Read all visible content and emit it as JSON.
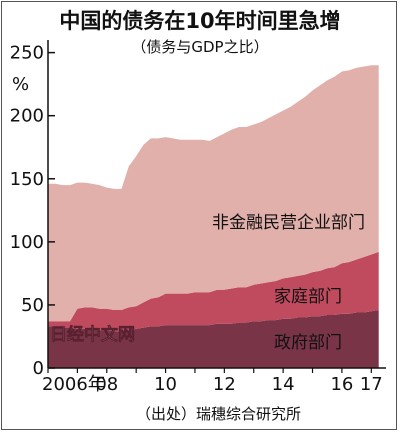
{
  "chart_data": {
    "type": "area",
    "stacked": true,
    "title": "中国的债务在10年时间里急增",
    "subtitle": "（债务与GDP之比）",
    "ylabel": "%",
    "ylim": [
      0,
      260
    ],
    "yticks": [
      0,
      50,
      100,
      150,
      200,
      250
    ],
    "xlim": [
      2006,
      2017.5
    ],
    "xticks": [
      {
        "value": 2006,
        "label": "2006年"
      },
      {
        "value": 2008,
        "label": "08"
      },
      {
        "value": 2010,
        "label": "10"
      },
      {
        "value": 2012,
        "label": "12"
      },
      {
        "value": 2014,
        "label": "14"
      },
      {
        "value": 2016,
        "label": "16"
      },
      {
        "value": 2017,
        "label": "17"
      }
    ],
    "grid": false,
    "x": [
      2006.0,
      2006.25,
      2006.5,
      2006.75,
      2007.0,
      2007.25,
      2007.5,
      2007.75,
      2008.0,
      2008.25,
      2008.5,
      2008.75,
      2009.0,
      2009.25,
      2009.5,
      2009.75,
      2010.0,
      2010.25,
      2010.5,
      2010.75,
      2011.0,
      2011.25,
      2011.5,
      2011.75,
      2012.0,
      2012.25,
      2012.5,
      2012.75,
      2013.0,
      2013.25,
      2013.5,
      2013.75,
      2014.0,
      2014.25,
      2014.5,
      2014.75,
      2015.0,
      2015.25,
      2015.5,
      2015.75,
      2016.0,
      2016.25,
      2016.5,
      2016.75,
      2017.0,
      2017.25
    ],
    "series": [
      {
        "name": "政府部门",
        "color": "#7a3448",
        "values": [
          33,
          33,
          32,
          32,
          31,
          31,
          31,
          30,
          30,
          29,
          29,
          30,
          31,
          32,
          33,
          33,
          34,
          34,
          34,
          34,
          34,
          34,
          34,
          35,
          35,
          35,
          36,
          36,
          37,
          37,
          38,
          38,
          39,
          39,
          40,
          40,
          41,
          41,
          42,
          42,
          43,
          43,
          44,
          44,
          45,
          46
        ]
      },
      {
        "name": "家庭部门",
        "color": "#c04a5e",
        "values": [
          4,
          4,
          5,
          5,
          16,
          17,
          17,
          17,
          17,
          17,
          17,
          18,
          18,
          20,
          22,
          23,
          25,
          25,
          25,
          25,
          26,
          26,
          26,
          27,
          27,
          28,
          28,
          28,
          29,
          30,
          30,
          31,
          32,
          33,
          33,
          34,
          35,
          36,
          37,
          38,
          40,
          41,
          42,
          44,
          45,
          46
        ]
      },
      {
        "name": "非金融民营企业部门",
        "color": "#e2b0aa",
        "values": [
          109,
          109,
          108,
          108,
          100,
          99,
          98,
          98,
          96,
          96,
          96,
          112,
          119,
          125,
          127,
          126,
          124,
          123,
          122,
          122,
          121,
          121,
          120,
          121,
          124,
          126,
          127,
          127,
          127,
          128,
          130,
          132,
          133,
          135,
          138,
          141,
          144,
          147,
          149,
          151,
          152,
          152,
          152,
          151,
          150,
          148
        ]
      }
    ],
    "watermark": "日经中文网",
    "source": "（出处）瑞穗综合研究所"
  }
}
